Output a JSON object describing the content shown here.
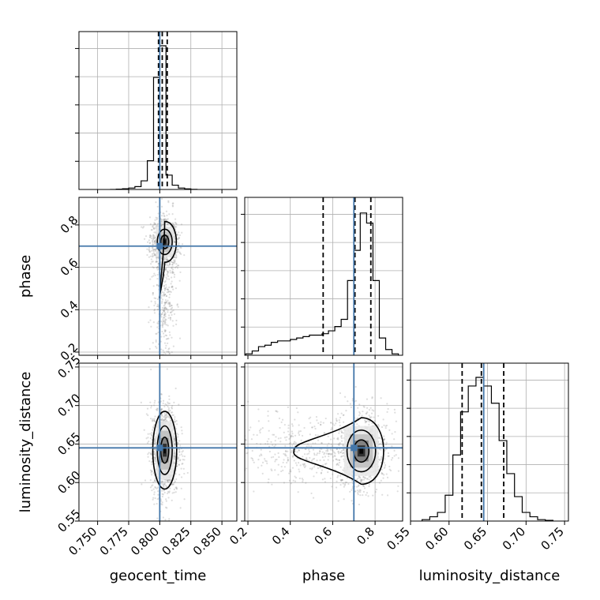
{
  "chart_data": {
    "type": "corner",
    "parameters": [
      "geocent_time",
      "phase",
      "luminosity_distance"
    ],
    "axis_labels": {
      "x": [
        "geocent_time",
        "phase",
        "luminosity_distance"
      ],
      "y": [
        "phase",
        "luminosity_distance"
      ]
    },
    "ranges": {
      "geocent_time": [
        0.735,
        0.862
      ],
      "phase": [
        0.185,
        0.93
      ],
      "luminosity_distance": [
        0.55,
        0.755
      ]
    },
    "ticks": {
      "geocent_time": [
        0.75,
        0.775,
        0.8,
        0.825,
        0.85
      ],
      "phase": [
        0.2,
        0.4,
        0.6,
        0.8
      ],
      "luminosity_distance": [
        0.55,
        0.6,
        0.65,
        0.7,
        0.75
      ]
    },
    "tick_labels": {
      "geocent_time": [
        "0.750",
        "0.775",
        "0.800",
        "0.825",
        "0.850"
      ],
      "phase": [
        "0.2",
        "0.4",
        "0.6",
        "0.8"
      ],
      "luminosity_distance": [
        "0.55",
        "0.60",
        "0.65",
        "0.70",
        "0.75"
      ]
    },
    "truths": {
      "geocent_time": 0.8,
      "phase": 0.7,
      "luminosity_distance": 0.645
    },
    "quantiles": {
      "geocent_time": [
        0.799,
        0.802,
        0.806
      ],
      "phase": [
        0.555,
        0.705,
        0.78
      ],
      "luminosity_distance": [
        0.617,
        0.642,
        0.671
      ]
    },
    "histograms": {
      "geocent_time": {
        "edges": [
          0.76,
          0.765,
          0.77,
          0.775,
          0.78,
          0.785,
          0.79,
          0.795,
          0.8,
          0.805,
          0.81,
          0.815,
          0.82,
          0.825,
          0.83
        ],
        "counts": [
          0,
          0.002,
          0.005,
          0.01,
          0.02,
          0.06,
          0.2,
          0.78,
          1.0,
          0.1,
          0.03,
          0.01,
          0.004,
          0.001
        ]
      },
      "phase": {
        "edges": [
          0.19,
          0.22,
          0.25,
          0.28,
          0.31,
          0.34,
          0.37,
          0.4,
          0.43,
          0.46,
          0.49,
          0.52,
          0.55,
          0.58,
          0.61,
          0.64,
          0.67,
          0.7,
          0.73,
          0.76,
          0.79,
          0.82,
          0.85,
          0.88,
          0.91
        ],
        "counts": [
          0.01,
          0.03,
          0.06,
          0.07,
          0.09,
          0.1,
          0.1,
          0.11,
          0.12,
          0.13,
          0.14,
          0.14,
          0.15,
          0.17,
          0.2,
          0.25,
          0.52,
          0.73,
          0.99,
          0.92,
          0.52,
          0.12,
          0.04,
          0.01
        ]
      },
      "luminosity_distance": {
        "edges": [
          0.565,
          0.575,
          0.585,
          0.595,
          0.605,
          0.615,
          0.625,
          0.635,
          0.645,
          0.655,
          0.665,
          0.675,
          0.685,
          0.695,
          0.705,
          0.715,
          0.725,
          0.735
        ],
        "counts": [
          0.01,
          0.03,
          0.06,
          0.18,
          0.46,
          0.76,
          0.94,
          1.0,
          0.94,
          0.82,
          0.56,
          0.33,
          0.17,
          0.06,
          0.03,
          0.01,
          0.005
        ]
      }
    },
    "contours_2d": [
      {
        "x": "geocent_time",
        "y": "phase",
        "mean": [
          0.804,
          0.72
        ],
        "sigma": [
          0.004,
          0.04
        ],
        "tail": {
          "mean": [
            0.803,
            0.46
          ],
          "sigma": [
            0.0035,
            0.14
          ],
          "weight": 0.35
        }
      },
      {
        "x": "geocent_time",
        "y": "luminosity_distance",
        "mean": [
          0.804,
          0.642
        ],
        "sigma": [
          0.004,
          0.021
        ]
      },
      {
        "x": "phase",
        "y": "luminosity_distance",
        "mean": [
          0.735,
          0.641
        ],
        "sigma": [
          0.045,
          0.018
        ],
        "tail": {
          "mean": [
            0.45,
            0.641
          ],
          "sigma": [
            0.12,
            0.016
          ],
          "weight": 0.3
        }
      }
    ],
    "grid": true,
    "colors": {
      "truth": "#4477aa",
      "hist": "#000000",
      "contour": "#000000",
      "points": "#888888",
      "grid": "#b0b0b0"
    }
  }
}
